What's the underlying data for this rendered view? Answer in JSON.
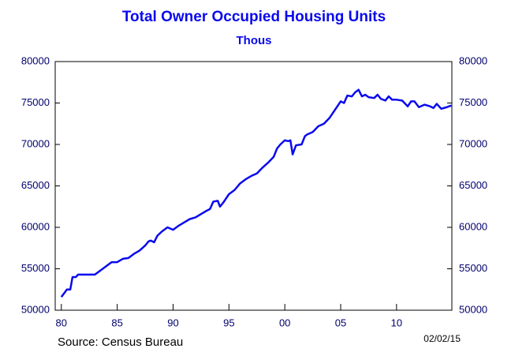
{
  "chart_data": {
    "type": "line",
    "title": "Total Owner Occupied Housing Units",
    "subtitle": "Thous",
    "source": "Source:  Census Bureau",
    "date": "02/02/15",
    "x": [
      1980.0,
      1980.5,
      1980.8,
      1981.0,
      1981.3,
      1981.5,
      1982.0,
      1983.0,
      1983.5,
      1984.0,
      1984.5,
      1985.0,
      1985.5,
      1986.0,
      1986.5,
      1987.0,
      1987.5,
      1987.8,
      1988.0,
      1988.3,
      1988.6,
      1989.0,
      1989.5,
      1990.0,
      1990.5,
      1991.0,
      1991.5,
      1992.0,
      1992.5,
      1993.0,
      1993.3,
      1993.6,
      1994.0,
      1994.2,
      1994.5,
      1995.0,
      1995.5,
      1996.0,
      1996.5,
      1997.0,
      1997.5,
      1998.0,
      1998.5,
      1999.0,
      1999.3,
      1999.6,
      2000.0,
      2000.3,
      2000.5,
      2000.7,
      2001.0,
      2001.5,
      2001.8,
      2002.0,
      2002.5,
      2003.0,
      2003.5,
      2004.0,
      2004.5,
      2005.0,
      2005.3,
      2005.6,
      2006.0,
      2006.3,
      2006.6,
      2006.9,
      2007.2,
      2007.5,
      2008.0,
      2008.3,
      2008.6,
      2009.0,
      2009.3,
      2009.6,
      2010.0,
      2010.5,
      2011.0,
      2011.3,
      2011.6,
      2012.0,
      2012.5,
      2013.0,
      2013.3,
      2013.6,
      2014.0,
      2014.5,
      2014.9
    ],
    "series": [
      {
        "name": "Total Owner Occupied Housing Units",
        "color": "#0a0aee",
        "values": [
          51600,
          52500,
          52500,
          54000,
          54000,
          54300,
          54300,
          54300,
          54800,
          55300,
          55800,
          55800,
          56200,
          56300,
          56800,
          57200,
          57800,
          58300,
          58400,
          58200,
          59000,
          59500,
          60000,
          59700,
          60200,
          60600,
          61000,
          61200,
          61600,
          62000,
          62200,
          63100,
          63200,
          62500,
          63000,
          64000,
          64500,
          65300,
          65800,
          66200,
          66500,
          67200,
          67800,
          68500,
          69500,
          70000,
          70500,
          70400,
          70500,
          68800,
          69900,
          70000,
          71000,
          71200,
          71500,
          72200,
          72500,
          73200,
          74200,
          75200,
          75000,
          75900,
          75800,
          76300,
          76600,
          75800,
          76000,
          75700,
          75600,
          76000,
          75500,
          75300,
          75800,
          75400,
          75400,
          75300,
          74600,
          75200,
          75200,
          74500,
          74800,
          74600,
          74400,
          74900,
          74300,
          74500,
          74700
        ]
      }
    ],
    "xlim": [
      1979.45,
      2014.95
    ],
    "xticks": [
      {
        "value": 1980,
        "label": "80"
      },
      {
        "value": 1985,
        "label": "85"
      },
      {
        "value": 1990,
        "label": "90"
      },
      {
        "value": 1995,
        "label": "95"
      },
      {
        "value": 2000,
        "label": "00"
      },
      {
        "value": 2005,
        "label": "05"
      },
      {
        "value": 2010,
        "label": "10"
      }
    ],
    "ylim": [
      50000,
      80000
    ],
    "yticks": [
      50000,
      55000,
      60000,
      65000,
      70000,
      75000,
      80000
    ],
    "y2lim": [
      50000,
      80000
    ],
    "y2ticks": [
      50000,
      55000,
      60000,
      65000,
      70000,
      75000,
      80000
    ]
  }
}
